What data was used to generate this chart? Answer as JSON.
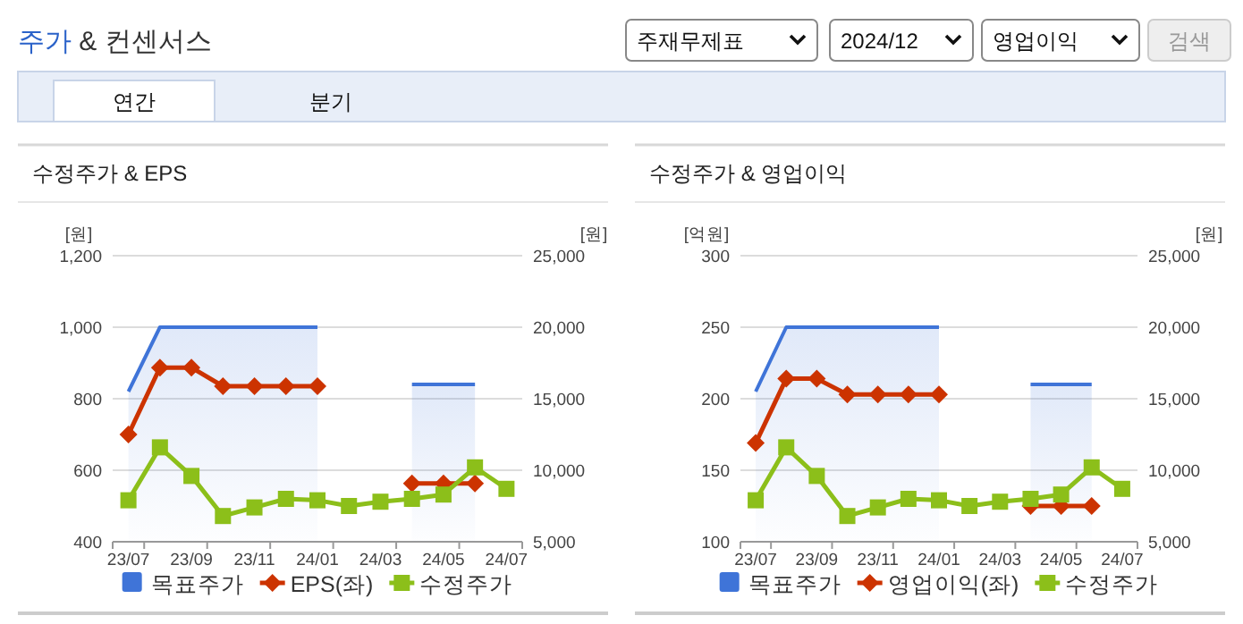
{
  "chart_data": [
    {
      "type": "other",
      "title": "주가 & 컨센서스",
      "annotations": [
        "주재무제표",
        "2024/12",
        "영업이익",
        "검색",
        "연간",
        "분기"
      ]
    },
    {
      "type": "line",
      "title": "수정주가 & EPS",
      "ylabel": "[원]",
      "y2label": "[원]",
      "categories": [
        "23/07",
        null,
        "23/09",
        null,
        "23/11",
        null,
        "24/01",
        null,
        "24/03",
        null,
        "24/05",
        null,
        "24/07"
      ],
      "ylim": [
        400,
        1200
      ],
      "yticks": [
        400,
        600,
        800,
        {
          "value": 1000,
          "label": "1,000"
        },
        {
          "value": 1200,
          "label": "1,200"
        }
      ],
      "y2lim": [
        5000,
        25000
      ],
      "y2ticks": [
        {
          "value": 5000,
          "label": "5,000"
        },
        {
          "value": 10000,
          "label": "10,000"
        },
        {
          "value": 15000,
          "label": "15,000"
        },
        {
          "value": 20000,
          "label": "20,000"
        },
        {
          "value": 25000,
          "label": "25,000"
        }
      ],
      "grid": "y",
      "legend": "bottom",
      "series": [
        {
          "name": "목표주가",
          "type": "area",
          "axis": "y2",
          "color": "#3f74d8",
          "values": [
            15500,
            20000,
            20000,
            20000,
            20000,
            20000,
            20000,
            null,
            null,
            16000,
            16000,
            16000,
            null
          ]
        },
        {
          "name": "EPS(좌)",
          "type": "line",
          "marker": "diamond",
          "color": "#cc3300",
          "values": [
            700,
            887,
            887,
            835,
            835,
            835,
            835,
            null,
            null,
            563,
            563,
            563,
            null
          ]
        },
        {
          "name": "수정주가",
          "type": "line",
          "marker": "square",
          "axis": "y2",
          "color": "#8cbf1a",
          "values": [
            7900,
            11600,
            9600,
            6800,
            7400,
            8000,
            7900,
            7500,
            7800,
            8000,
            8300,
            10200,
            8700
          ]
        }
      ]
    },
    {
      "type": "line",
      "title": "수정주가 & 영업이익",
      "ylabel": "[억원]",
      "y2label": "[원]",
      "categories": [
        "23/07",
        null,
        "23/09",
        null,
        "23/11",
        null,
        "24/01",
        null,
        "24/03",
        null,
        "24/05",
        null,
        "24/07"
      ],
      "ylim": [
        100,
        300
      ],
      "yticks": [
        100,
        150,
        200,
        250,
        300
      ],
      "y2lim": [
        5000,
        25000
      ],
      "y2ticks": [
        {
          "value": 5000,
          "label": "5,000"
        },
        {
          "value": 10000,
          "label": "10,000"
        },
        {
          "value": 15000,
          "label": "15,000"
        },
        {
          "value": 20000,
          "label": "20,000"
        },
        {
          "value": 25000,
          "label": "25,000"
        }
      ],
      "grid": "y",
      "legend": "bottom",
      "series": [
        {
          "name": "목표주가",
          "type": "area",
          "axis": "y2",
          "color": "#3f74d8",
          "values": [
            15500,
            20000,
            20000,
            20000,
            20000,
            20000,
            20000,
            null,
            null,
            16000,
            16000,
            16000,
            null
          ]
        },
        {
          "name": "영업이익(좌)",
          "type": "line",
          "marker": "diamond",
          "color": "#cc3300",
          "values": [
            169,
            214,
            214,
            203,
            203,
            203,
            203,
            null,
            null,
            125,
            125,
            125,
            null
          ]
        },
        {
          "name": "수정주가",
          "type": "line",
          "marker": "square",
          "axis": "y2",
          "color": "#8cbf1a",
          "values": [
            7900,
            11600,
            9600,
            6800,
            7400,
            8000,
            7900,
            7500,
            7800,
            8000,
            8300,
            10200,
            8700
          ]
        }
      ]
    }
  ]
}
